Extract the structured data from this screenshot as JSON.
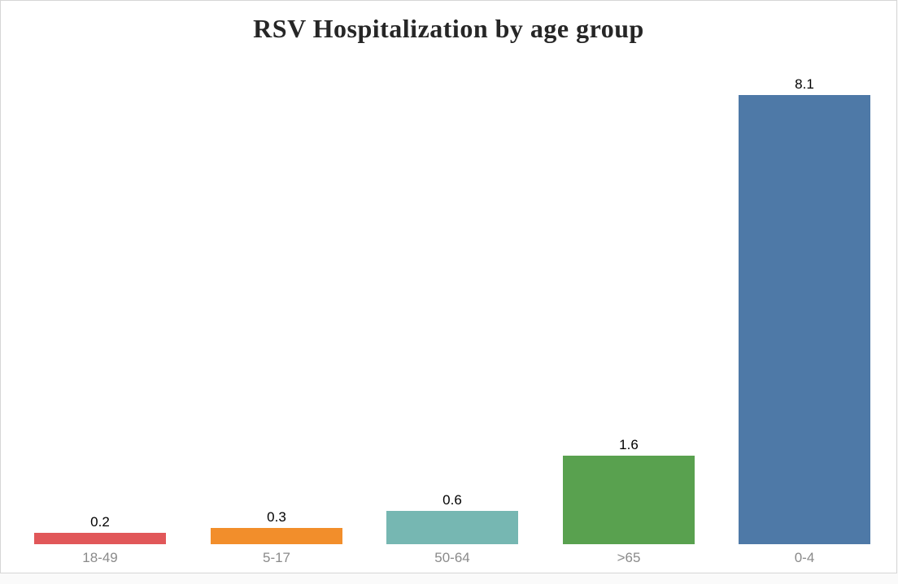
{
  "page": {
    "background_color": "#fafafa",
    "chart_border_color": "#d6d6d6",
    "chart_background_color": "#ffffff"
  },
  "chart_data": {
    "type": "bar",
    "title": "RSV Hospitalization by age group",
    "title_color": "#262626",
    "categories": [
      "18-49",
      "5-17",
      "50-64",
      ">65",
      "0-4"
    ],
    "values": [
      0.2,
      0.3,
      0.6,
      1.6,
      8.1
    ],
    "value_labels": [
      "0.2",
      "0.3",
      "0.6",
      "1.6",
      "8.1"
    ],
    "bar_colors": [
      "#e15759",
      "#f28e2b",
      "#76b7b2",
      "#59a14f",
      "#4e79a7"
    ],
    "value_label_color": "#000000",
    "category_label_color": "#8a8a8a",
    "xlabel": "",
    "ylabel": "",
    "ylim": [
      0,
      8.1
    ],
    "grid": false,
    "legend": false,
    "axis_lines": false,
    "orientation": "vertical",
    "bar_order": "as-listed-left-to-right"
  }
}
